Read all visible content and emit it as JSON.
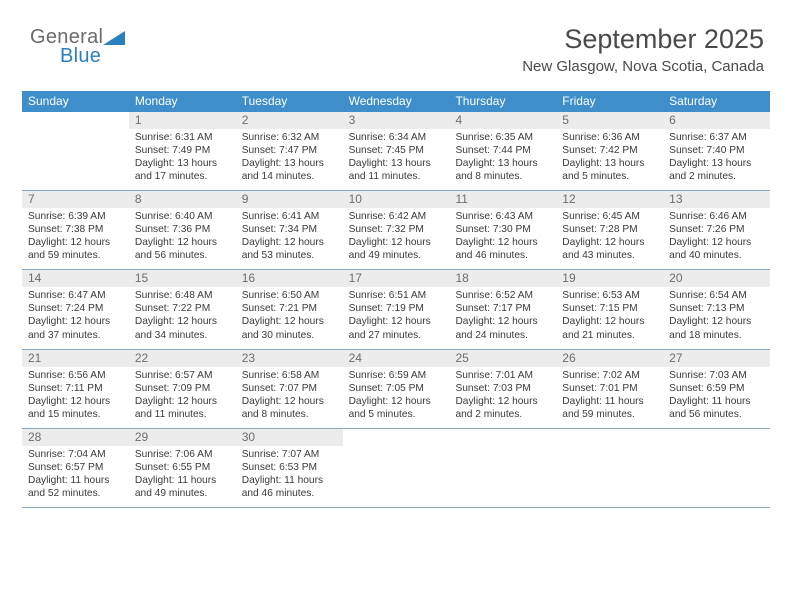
{
  "brand": {
    "first": "General",
    "second": "Blue"
  },
  "title": "September 2025",
  "location": "New Glasgow, Nova Scotia, Canada",
  "columns": [
    "Sunday",
    "Monday",
    "Tuesday",
    "Wednesday",
    "Thursday",
    "Friday",
    "Saturday"
  ],
  "colors": {
    "header_bg": "#3d8ecb",
    "header_text": "#ffffff",
    "daynum_bg": "#ececec",
    "daynum_text": "#6e6e6e",
    "rule": "#8aa8bf",
    "body_text": "#3a3a3a"
  },
  "weeks": [
    [
      {
        "n": "",
        "sunrise": "",
        "sunset": "",
        "daylight": ""
      },
      {
        "n": "1",
        "sunrise": "6:31 AM",
        "sunset": "7:49 PM",
        "daylight": "13 hours and 17 minutes."
      },
      {
        "n": "2",
        "sunrise": "6:32 AM",
        "sunset": "7:47 PM",
        "daylight": "13 hours and 14 minutes."
      },
      {
        "n": "3",
        "sunrise": "6:34 AM",
        "sunset": "7:45 PM",
        "daylight": "13 hours and 11 minutes."
      },
      {
        "n": "4",
        "sunrise": "6:35 AM",
        "sunset": "7:44 PM",
        "daylight": "13 hours and 8 minutes."
      },
      {
        "n": "5",
        "sunrise": "6:36 AM",
        "sunset": "7:42 PM",
        "daylight": "13 hours and 5 minutes."
      },
      {
        "n": "6",
        "sunrise": "6:37 AM",
        "sunset": "7:40 PM",
        "daylight": "13 hours and 2 minutes."
      }
    ],
    [
      {
        "n": "7",
        "sunrise": "6:39 AM",
        "sunset": "7:38 PM",
        "daylight": "12 hours and 59 minutes."
      },
      {
        "n": "8",
        "sunrise": "6:40 AM",
        "sunset": "7:36 PM",
        "daylight": "12 hours and 56 minutes."
      },
      {
        "n": "9",
        "sunrise": "6:41 AM",
        "sunset": "7:34 PM",
        "daylight": "12 hours and 53 minutes."
      },
      {
        "n": "10",
        "sunrise": "6:42 AM",
        "sunset": "7:32 PM",
        "daylight": "12 hours and 49 minutes."
      },
      {
        "n": "11",
        "sunrise": "6:43 AM",
        "sunset": "7:30 PM",
        "daylight": "12 hours and 46 minutes."
      },
      {
        "n": "12",
        "sunrise": "6:45 AM",
        "sunset": "7:28 PM",
        "daylight": "12 hours and 43 minutes."
      },
      {
        "n": "13",
        "sunrise": "6:46 AM",
        "sunset": "7:26 PM",
        "daylight": "12 hours and 40 minutes."
      }
    ],
    [
      {
        "n": "14",
        "sunrise": "6:47 AM",
        "sunset": "7:24 PM",
        "daylight": "12 hours and 37 minutes."
      },
      {
        "n": "15",
        "sunrise": "6:48 AM",
        "sunset": "7:22 PM",
        "daylight": "12 hours and 34 minutes."
      },
      {
        "n": "16",
        "sunrise": "6:50 AM",
        "sunset": "7:21 PM",
        "daylight": "12 hours and 30 minutes."
      },
      {
        "n": "17",
        "sunrise": "6:51 AM",
        "sunset": "7:19 PM",
        "daylight": "12 hours and 27 minutes."
      },
      {
        "n": "18",
        "sunrise": "6:52 AM",
        "sunset": "7:17 PM",
        "daylight": "12 hours and 24 minutes."
      },
      {
        "n": "19",
        "sunrise": "6:53 AM",
        "sunset": "7:15 PM",
        "daylight": "12 hours and 21 minutes."
      },
      {
        "n": "20",
        "sunrise": "6:54 AM",
        "sunset": "7:13 PM",
        "daylight": "12 hours and 18 minutes."
      }
    ],
    [
      {
        "n": "21",
        "sunrise": "6:56 AM",
        "sunset": "7:11 PM",
        "daylight": "12 hours and 15 minutes."
      },
      {
        "n": "22",
        "sunrise": "6:57 AM",
        "sunset": "7:09 PM",
        "daylight": "12 hours and 11 minutes."
      },
      {
        "n": "23",
        "sunrise": "6:58 AM",
        "sunset": "7:07 PM",
        "daylight": "12 hours and 8 minutes."
      },
      {
        "n": "24",
        "sunrise": "6:59 AM",
        "sunset": "7:05 PM",
        "daylight": "12 hours and 5 minutes."
      },
      {
        "n": "25",
        "sunrise": "7:01 AM",
        "sunset": "7:03 PM",
        "daylight": "12 hours and 2 minutes."
      },
      {
        "n": "26",
        "sunrise": "7:02 AM",
        "sunset": "7:01 PM",
        "daylight": "11 hours and 59 minutes."
      },
      {
        "n": "27",
        "sunrise": "7:03 AM",
        "sunset": "6:59 PM",
        "daylight": "11 hours and 56 minutes."
      }
    ],
    [
      {
        "n": "28",
        "sunrise": "7:04 AM",
        "sunset": "6:57 PM",
        "daylight": "11 hours and 52 minutes."
      },
      {
        "n": "29",
        "sunrise": "7:06 AM",
        "sunset": "6:55 PM",
        "daylight": "11 hours and 49 minutes."
      },
      {
        "n": "30",
        "sunrise": "7:07 AM",
        "sunset": "6:53 PM",
        "daylight": "11 hours and 46 minutes."
      },
      {
        "n": "",
        "sunrise": "",
        "sunset": "",
        "daylight": ""
      },
      {
        "n": "",
        "sunrise": "",
        "sunset": "",
        "daylight": ""
      },
      {
        "n": "",
        "sunrise": "",
        "sunset": "",
        "daylight": ""
      },
      {
        "n": "",
        "sunrise": "",
        "sunset": "",
        "daylight": ""
      }
    ]
  ]
}
